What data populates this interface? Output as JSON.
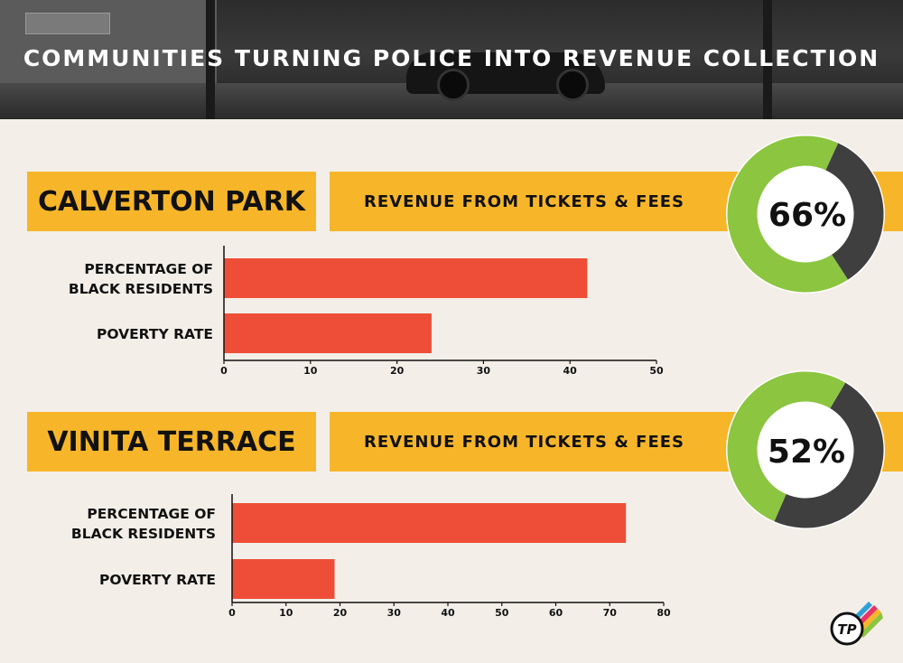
{
  "header": {
    "title": "COMMUNITIES TURNING POLICE INTO REVENUE COLLECTION"
  },
  "colors": {
    "banner": "#f7b62a",
    "bar": "#ee4e38",
    "donut_revenue": "#8cc540",
    "donut_other": "#3f3f3f"
  },
  "sections": [
    {
      "community": "CALVERTON PARK",
      "revenue_label": "REVENUE FROM TICKETS & FEES",
      "revenue_percent_label": "66%"
    },
    {
      "community": "VINITA TERRACE",
      "revenue_label": "REVENUE FROM TICKETS & FEES",
      "revenue_percent_label": "52%"
    }
  ],
  "chart_data": [
    {
      "type": "bar",
      "orientation": "horizontal",
      "categories": [
        "PERCENTAGE OF BLACK RESIDENTS",
        "POVERTY RATE"
      ],
      "values": [
        42,
        24
      ],
      "xlim": [
        0,
        50
      ],
      "xticks": [
        0,
        10,
        20,
        30,
        40,
        50
      ]
    },
    {
      "type": "bar",
      "orientation": "horizontal",
      "categories": [
        "PERCENTAGE OF BLACK RESIDENTS",
        "POVERTY RATE"
      ],
      "values": [
        73,
        19
      ],
      "xlim": [
        0,
        80
      ],
      "xticks": [
        0,
        10,
        20,
        30,
        40,
        50,
        60,
        70,
        80
      ]
    },
    {
      "type": "pie",
      "variant": "donut",
      "values": [
        66,
        34
      ],
      "center_label": "66%"
    },
    {
      "type": "pie",
      "variant": "donut",
      "values": [
        52,
        48
      ],
      "center_label": "52%"
    }
  ]
}
